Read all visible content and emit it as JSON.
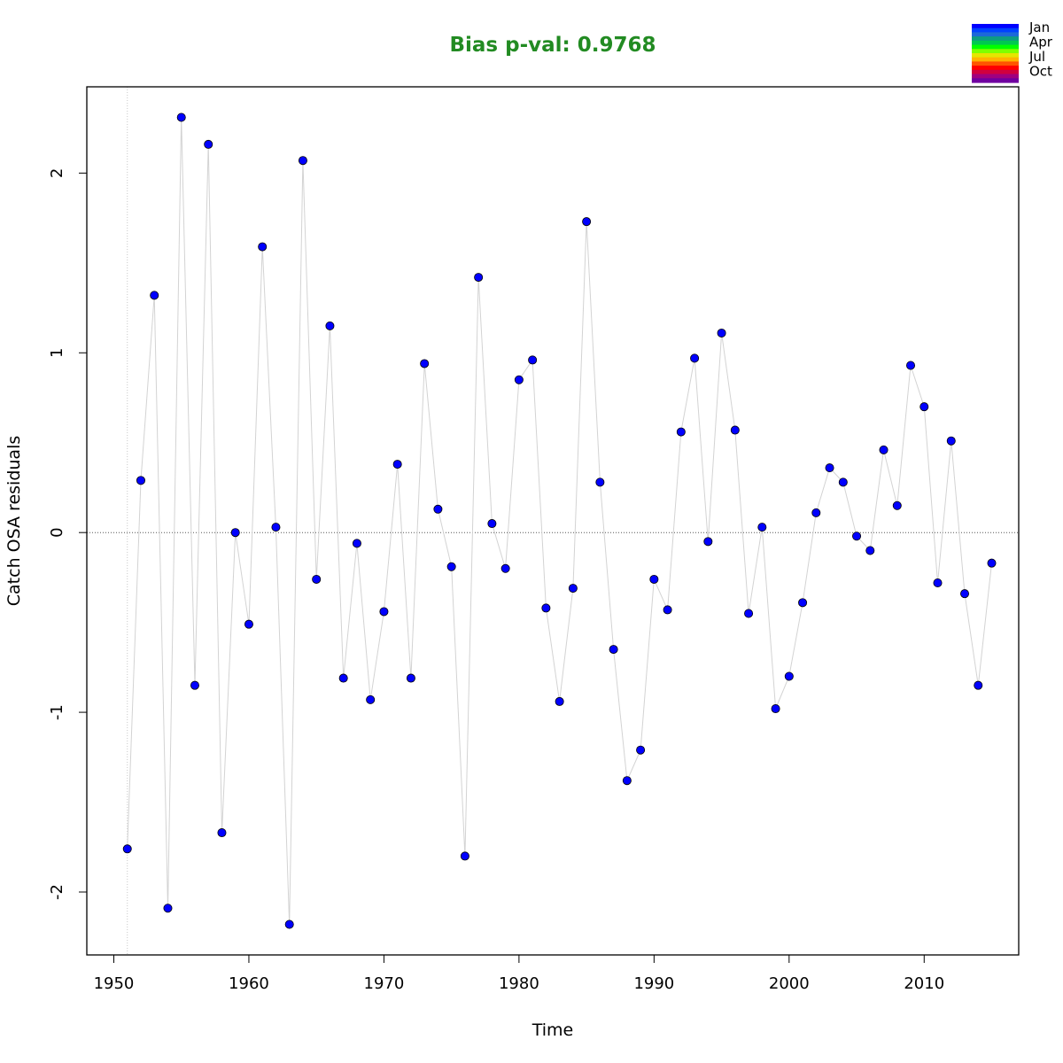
{
  "chart_data": {
    "type": "scatter",
    "title": "Bias p-val: 0.9768",
    "title_color": "#228B22",
    "xlabel": "Time",
    "ylabel": "Catch OSA residuals",
    "xlim": [
      1948,
      2017
    ],
    "ylim": [
      -2.35,
      2.48
    ],
    "x_ticks": [
      1950,
      1960,
      1970,
      1980,
      1990,
      2000,
      2010
    ],
    "y_ticks": [
      -2,
      -1,
      0,
      1,
      2
    ],
    "reference_hline": 0,
    "reference_vline": 1951,
    "grid": false,
    "point_color": "#0000FF",
    "line_color": "#D3D3D3",
    "series": [
      {
        "x": [
          1951,
          1952,
          1953,
          1954,
          1955,
          1956,
          1957,
          1958,
          1959,
          1960,
          1961,
          1962,
          1963,
          1964,
          1965,
          1966,
          1967,
          1968,
          1969,
          1970,
          1971,
          1972,
          1973,
          1974,
          1975,
          1976,
          1977,
          1978,
          1979,
          1980,
          1981,
          1982,
          1983,
          1984,
          1985,
          1986,
          1987,
          1988,
          1989,
          1990,
          1991,
          1992,
          1993,
          1994,
          1995,
          1996,
          1997,
          1998,
          1999,
          2000,
          2001,
          2002,
          2003,
          2004,
          2005,
          2006,
          2007,
          2008,
          2009,
          2010,
          2011,
          2012,
          2013,
          2014,
          2015
        ],
        "values": [
          -1.76,
          0.29,
          1.32,
          -2.09,
          2.31,
          -0.85,
          2.16,
          -1.67,
          0.0,
          -0.51,
          1.59,
          0.03,
          -2.18,
          2.07,
          -0.26,
          1.15,
          -0.81,
          -0.06,
          -0.93,
          -0.44,
          0.38,
          -0.81,
          0.94,
          0.13,
          -0.19,
          -1.8,
          1.42,
          0.05,
          -0.2,
          0.85,
          0.96,
          -0.42,
          -0.94,
          -0.31,
          1.73,
          0.28,
          -0.65,
          -1.38,
          -1.21,
          -0.26,
          -0.43,
          0.56,
          0.97,
          -0.05,
          1.11,
          0.57,
          -0.45,
          0.03,
          -0.98,
          -0.8,
          -0.39,
          0.11,
          0.36,
          0.28,
          -0.02,
          -0.1,
          0.46,
          0.15,
          0.93,
          0.7,
          -0.28,
          0.51,
          -0.34,
          -0.85,
          -0.17
        ]
      }
    ],
    "legend": {
      "placement": "top-right",
      "labels": [
        "Jan",
        "Apr",
        "Jul",
        "Oct"
      ],
      "colors": [
        "#0000FF",
        "#0041FF",
        "#1C69D9",
        "#0D9D82",
        "#00C850",
        "#00FF00",
        "#7FFF00",
        "#E5E500",
        "#FFB400",
        "#FF5500",
        "#FF0000",
        "#D10040",
        "#A00080",
        "#7000A0"
      ]
    }
  }
}
